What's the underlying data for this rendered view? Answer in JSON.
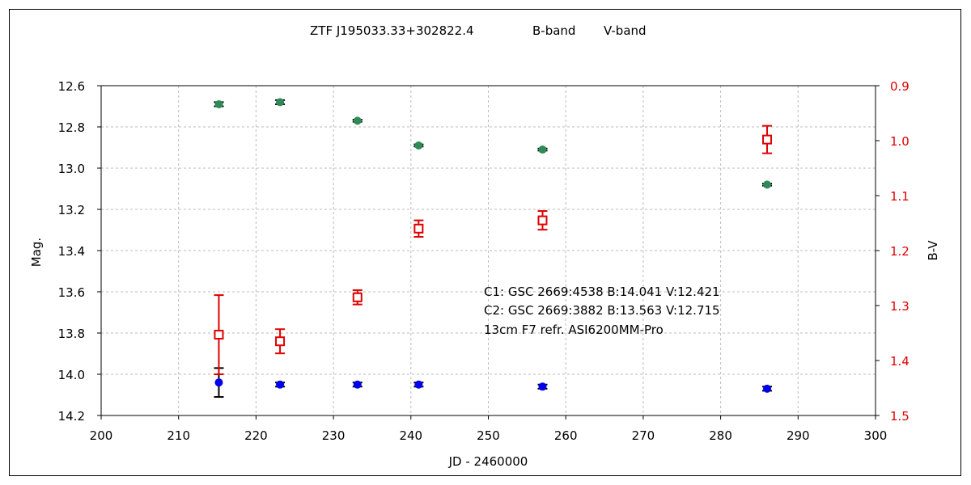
{
  "chart_data": {
    "type": "scatter",
    "title": "ZTF J195033.33+302822.4",
    "legend": [
      {
        "label": "B-band",
        "color": "#0000ee"
      },
      {
        "label": "V-band",
        "color": "#2e8b57"
      }
    ],
    "xlabel": "JD - 2460000",
    "ylabel_left": "Mag.",
    "ylabel_right": "B-V",
    "xlim": [
      200,
      300
    ],
    "ylim_left": [
      12.6,
      14.2
    ],
    "ylim_right": [
      0.9,
      1.5
    ],
    "left_axis_inverted": true,
    "right_axis_inverted": true,
    "grid": true,
    "x_ticks": [
      "200",
      "210",
      "220",
      "230",
      "240",
      "250",
      "260",
      "270",
      "280",
      "290",
      "300"
    ],
    "y_left_ticks": [
      "12.6",
      "12.8",
      "13.0",
      "13.2",
      "13.4",
      "13.6",
      "13.8",
      "14.0",
      "14.2"
    ],
    "y_right_ticks": [
      "0.9",
      "1.0",
      "1.1",
      "1.2",
      "1.3",
      "1.4",
      "1.5"
    ],
    "series": [
      {
        "name": "B-band",
        "axis": "left",
        "marker": "circle",
        "color": "#0000ee",
        "x": [
          215.2,
          223.1,
          233.1,
          241.0,
          257.0,
          286.0
        ],
        "y": [
          14.04,
          14.05,
          14.05,
          14.05,
          14.06,
          14.07
        ],
        "err": [
          0.07,
          0.01,
          0.01,
          0.01,
          0.01,
          0.01
        ]
      },
      {
        "name": "V-band",
        "axis": "left",
        "marker": "circle",
        "color": "#2e8b57",
        "x": [
          215.2,
          223.1,
          233.1,
          241.0,
          257.0,
          286.0
        ],
        "y": [
          12.69,
          12.68,
          12.77,
          12.89,
          12.91,
          13.08
        ],
        "err": [
          0.01,
          0.01,
          0.005,
          0.005,
          0.005,
          0.005
        ]
      },
      {
        "name": "B-V",
        "axis": "right",
        "marker": "square-open",
        "color": "#e00000",
        "x": [
          215.2,
          223.1,
          233.1,
          241.0,
          257.0,
          286.0
        ],
        "y": [
          1.353,
          1.365,
          1.285,
          1.16,
          1.145,
          0.998
        ],
        "err": [
          0.072,
          0.022,
          0.013,
          0.015,
          0.017,
          0.025
        ]
      }
    ],
    "annotations": [
      "C1: GSC 2669:4538  B:14.041  V:12.421",
      "C2: GSC 2669:3882  B:13.563  V:12.715",
      "13cm F7 refr.  ASI6200MM-Pro"
    ]
  }
}
